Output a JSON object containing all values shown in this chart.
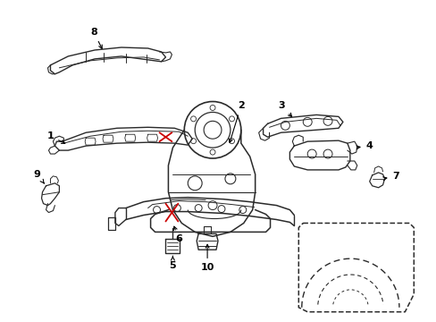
{
  "background_color": "#ffffff",
  "line_color": "#2a2a2a",
  "callout_color": "#000000",
  "red_line_color": "#cc0000",
  "fig_width": 4.89,
  "fig_height": 3.6,
  "dpi": 100
}
